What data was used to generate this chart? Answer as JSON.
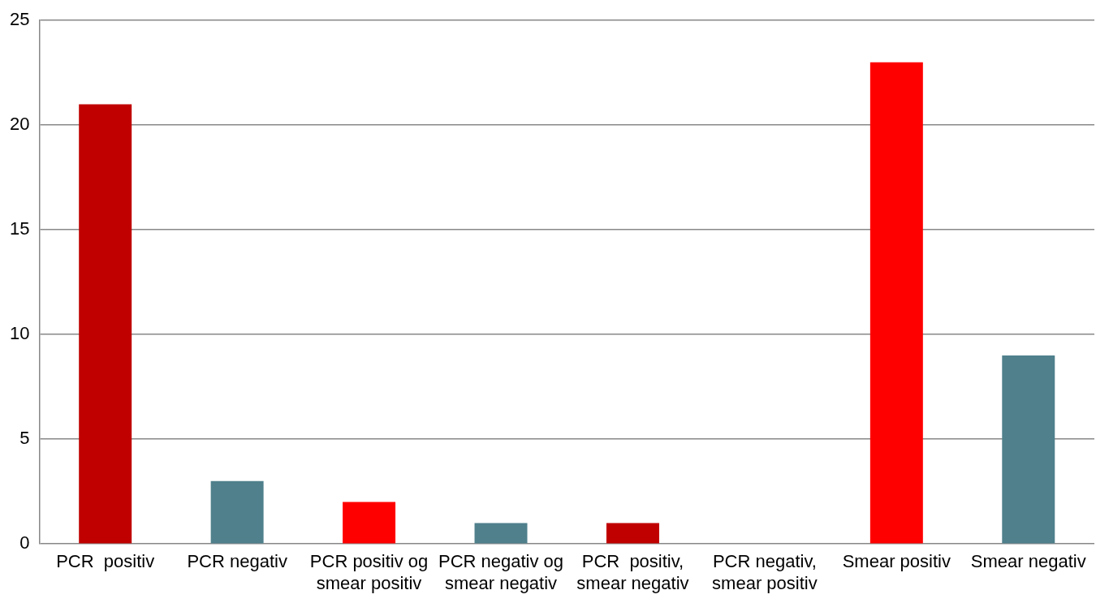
{
  "chart_data": {
    "type": "bar",
    "categories": [
      "PCR  positiv",
      "PCR negativ",
      "PCR positiv og smear positiv",
      "PCR negativ og smear negativ",
      "PCR  positiv, smear negativ",
      "PCR negativ, smear positiv",
      "Smear positiv",
      "Smear negativ"
    ],
    "values": [
      21,
      3,
      2,
      1,
      1,
      0,
      23,
      9
    ],
    "colors": [
      "#c00000",
      "#4f808c",
      "#ff0000",
      "#4f808c",
      "#c00000",
      "#4f808c",
      "#ff0000",
      "#4f808c"
    ],
    "ylim": [
      0,
      25
    ],
    "yticks": [
      0,
      5,
      10,
      15,
      20,
      25
    ],
    "grid": "y",
    "legend": false
  }
}
